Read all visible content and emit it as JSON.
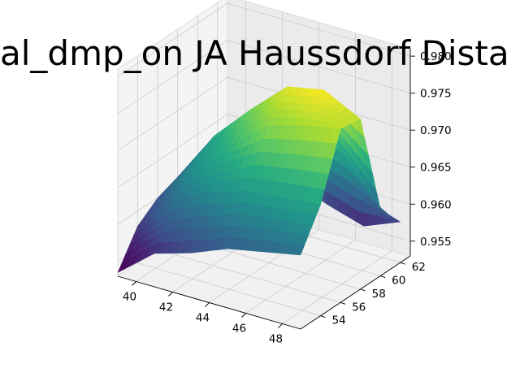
{
  "chart_data": {
    "type": "surface3d",
    "title": "al_dmp_on JA Haussdorf Dista",
    "xlabel": "",
    "ylabel": "",
    "zlabel": "",
    "colormap": "viridis",
    "grid": true,
    "x_ticks": [
      "40",
      "42",
      "44",
      "46",
      "48"
    ],
    "y_ticks": [
      "54",
      "56",
      "58",
      "60",
      "62"
    ],
    "z_ticks": [
      "0.955",
      "0.960",
      "0.965",
      "0.970",
      "0.975",
      "0.980"
    ],
    "xlim": [
      39,
      49
    ],
    "ylim": [
      52,
      63
    ],
    "zlim": [
      0.953,
      0.981
    ],
    "x": [
      39,
      41,
      43,
      45,
      47,
      49
    ],
    "y": [
      52,
      54,
      56,
      58,
      60,
      62
    ],
    "z": [
      [
        0.9535,
        0.9575,
        0.959,
        0.961,
        0.962,
        0.963
      ],
      [
        0.958,
        0.963,
        0.9655,
        0.967,
        0.9675,
        0.968
      ],
      [
        0.96,
        0.966,
        0.97,
        0.974,
        0.9755,
        0.9765
      ],
      [
        0.961,
        0.968,
        0.973,
        0.9775,
        0.9785,
        0.976
      ],
      [
        0.9605,
        0.965,
        0.969,
        0.97,
        0.968,
        0.962
      ],
      [
        0.959,
        0.961,
        0.96,
        0.958,
        0.9565,
        0.9585
      ]
    ]
  }
}
